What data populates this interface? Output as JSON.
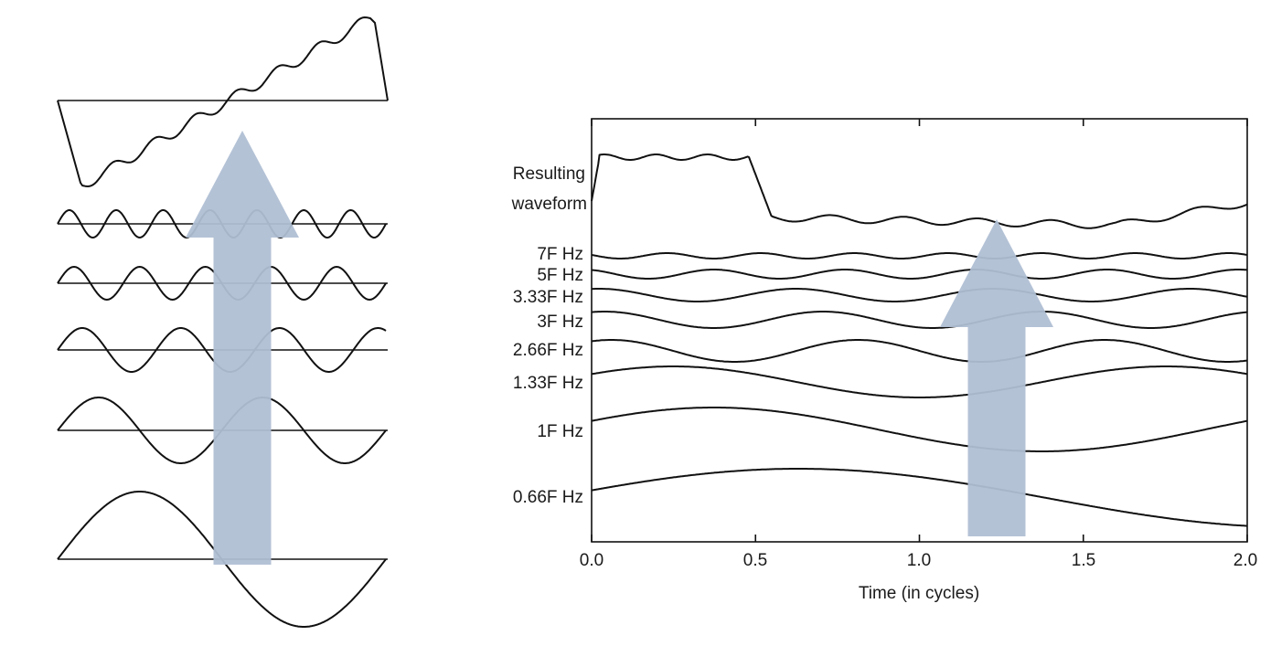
{
  "colors": {
    "arrow": "#b0bfd4",
    "stroke": "#111111",
    "background": "#ffffff"
  },
  "left_panel": {
    "waves": [
      {
        "name": "resulting",
        "cycles": 1
      },
      {
        "name": "harmonic-7",
        "cycles": 7
      },
      {
        "name": "harmonic-5",
        "cycles": 5
      },
      {
        "name": "harmonic-3-33",
        "cycles": 3.33
      },
      {
        "name": "harmonic-2",
        "cycles": 2
      },
      {
        "name": "harmonic-1",
        "cycles": 1
      }
    ]
  },
  "right_panel": {
    "row_labels": [
      "Resulting",
      "waveform",
      "7F Hz",
      "5F Hz",
      "3.33F Hz",
      "3F Hz",
      "2.66F Hz",
      "1.33F Hz",
      "1F Hz",
      "0.66F Hz"
    ],
    "x_axis": {
      "label": "Time (in cycles)",
      "ticks": [
        "0.0",
        "0.5",
        "1.0",
        "1.5",
        "2.0"
      ],
      "range": [
        0,
        2
      ]
    },
    "components": [
      {
        "label": "7F Hz",
        "frequency": 7
      },
      {
        "label": "5F Hz",
        "frequency": 5
      },
      {
        "label": "3.33F Hz",
        "frequency": 3.33
      },
      {
        "label": "3F Hz",
        "frequency": 3
      },
      {
        "label": "2.66F Hz",
        "frequency": 2.66
      },
      {
        "label": "1.33F Hz",
        "frequency": 1.33
      },
      {
        "label": "1F Hz",
        "frequency": 1
      },
      {
        "label": "0.66F Hz",
        "frequency": 0.66
      }
    ]
  }
}
